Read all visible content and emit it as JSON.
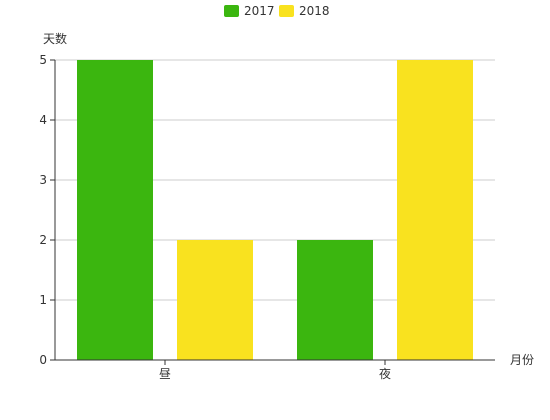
{
  "chart_data": {
    "type": "bar",
    "categories": [
      "昼",
      "夜"
    ],
    "series": [
      {
        "name": "2017",
        "values": [
          5,
          2
        ],
        "color": "#3bb60f"
      },
      {
        "name": "2018",
        "values": [
          2,
          5
        ],
        "color": "#f9e21f"
      }
    ],
    "xlabel": "月份",
    "ylabel": "天数",
    "ylim": [
      0,
      5
    ],
    "yticks": [
      0,
      1,
      2,
      3,
      4,
      5
    ],
    "grid": true,
    "legend_position": "top-center"
  }
}
